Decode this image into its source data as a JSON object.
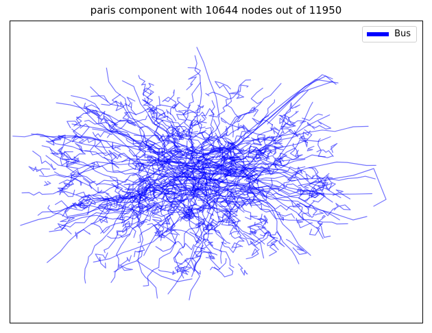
{
  "title": "paris component with 10644 nodes out of 11950",
  "legend": {
    "label": "Bus",
    "color": "#0000ff"
  },
  "network": {
    "edge_color": "#0000ff",
    "edge_opacity": 0.55
  }
}
